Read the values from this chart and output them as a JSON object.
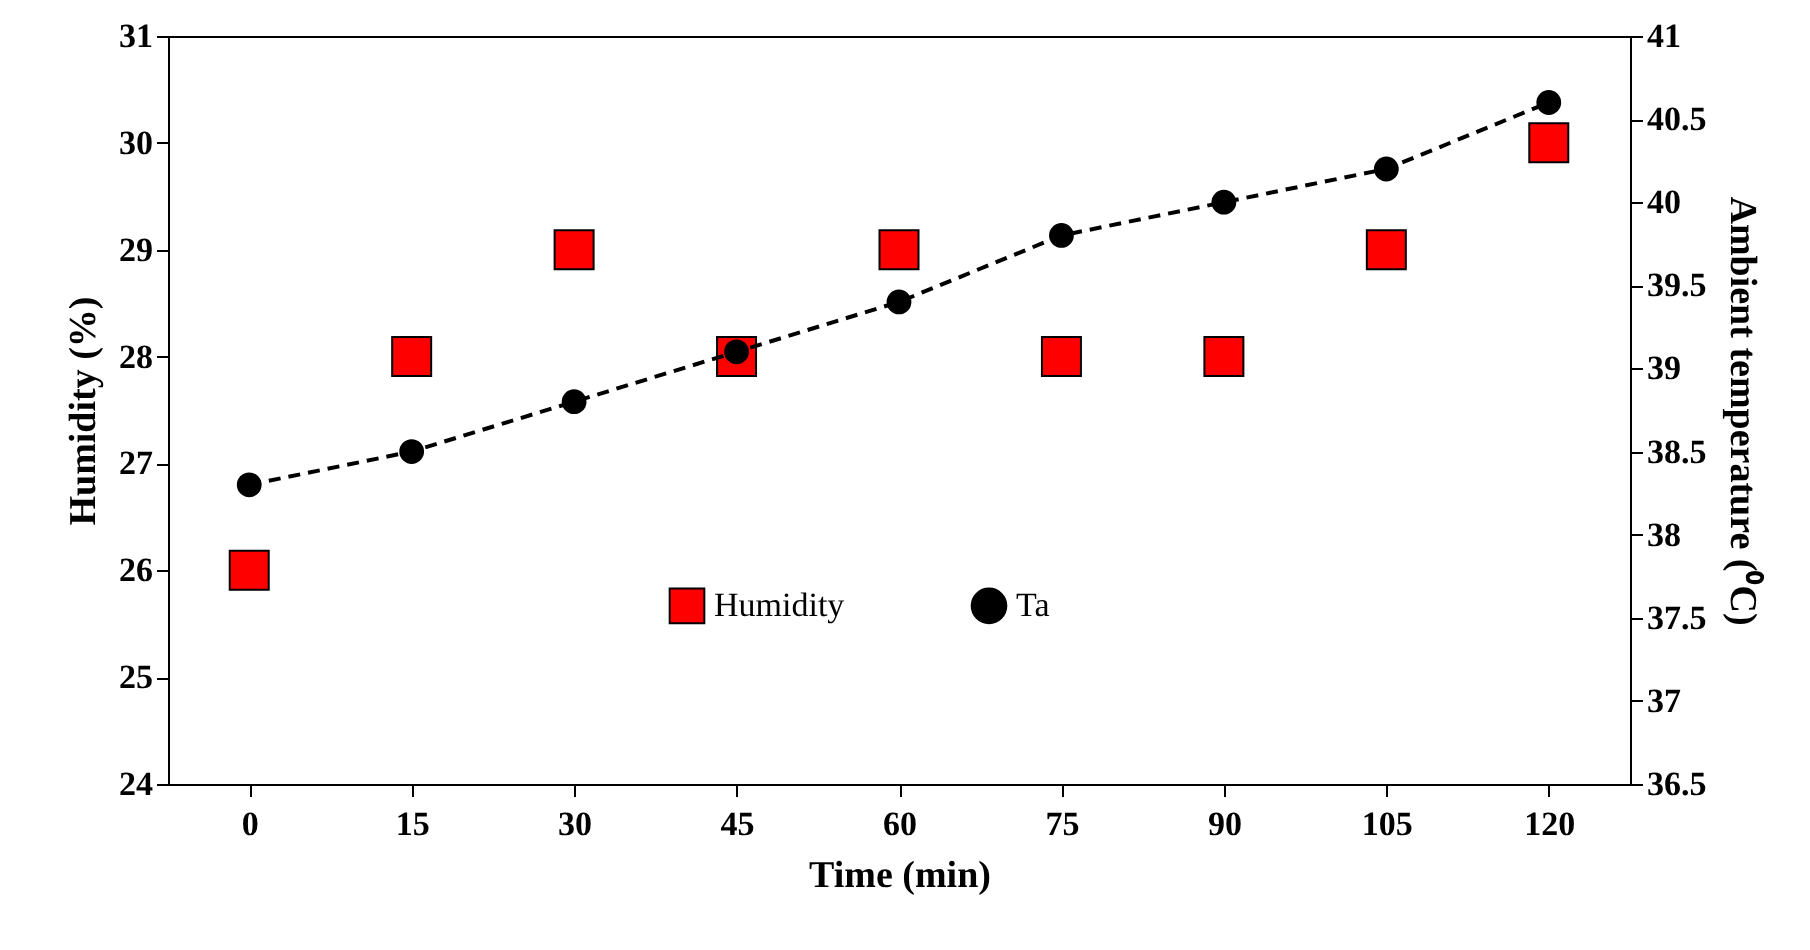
{
  "chart_data": {
    "type": "line",
    "xlabel": "Time (min)",
    "ylabel": "Humidity (%)",
    "y2label": "Ambient temperature (⁰C)",
    "categories": [
      "0",
      "15",
      "30",
      "45",
      "60",
      "75",
      "90",
      "105",
      "120"
    ],
    "ylim": [
      24,
      31
    ],
    "yticks": [
      24,
      25,
      26,
      27,
      28,
      29,
      30,
      31
    ],
    "y2lim": [
      36.5,
      41
    ],
    "y2ticks": [
      36.5,
      37,
      37.5,
      38,
      38.5,
      39,
      39.5,
      40,
      40.5,
      41
    ],
    "legend": "bottom",
    "series": [
      {
        "name": "Humidity",
        "type": "scatter",
        "marker": "square",
        "color": "#ff0000",
        "values": [
          26,
          28,
          29,
          28,
          29,
          28,
          28,
          29,
          30
        ]
      },
      {
        "name": "Ta",
        "axis": "y2",
        "marker": "circle",
        "line_style": "dashed",
        "color": "#000000",
        "values": [
          38.3,
          38.5,
          38.8,
          39.1,
          39.4,
          39.8,
          40.0,
          40.2,
          40.6
        ]
      }
    ]
  }
}
